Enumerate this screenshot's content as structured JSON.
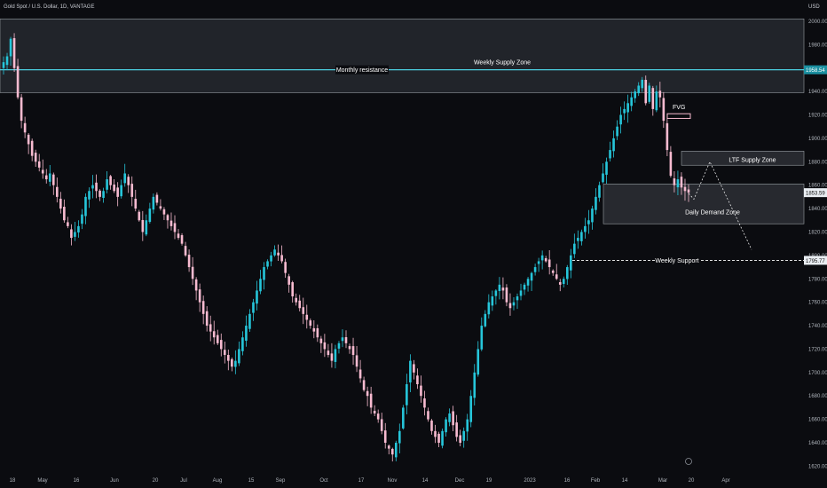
{
  "header": {
    "symbol_title": "Gold Spot / U.S. Dollar, 1D, VANTAGE",
    "currency": "USD"
  },
  "colors": {
    "background": "#0b0c10",
    "up_candle": "#26c6da",
    "down_candle": "#f8bbd0",
    "level_line": "#4dd0e1",
    "zone_fill": "#2a2c33",
    "zone_border": "#9aa0a6",
    "text": "#ffffff",
    "axis_text": "#aeb3ba"
  },
  "price_axis": {
    "ticks": [
      "2000.00",
      "1980.00",
      "1960.00",
      "1940.00",
      "1920.00",
      "1900.00",
      "1880.00",
      "1860.00",
      "1840.00",
      "1820.00",
      "1800.00",
      "1780.00",
      "1760.00",
      "1740.00",
      "1720.00",
      "1700.00",
      "1680.00",
      "1660.00",
      "1640.00",
      "1620.00"
    ],
    "current_price_label": "1853.59",
    "resistance_price_label": "1958.54",
    "support_price_label": "1795.77"
  },
  "time_axis": {
    "labels": [
      "18",
      "May",
      "16",
      "Jun",
      "20",
      "Jul",
      "Aug",
      "15",
      "Sep",
      "Oct",
      "17",
      "Nov",
      "14",
      "Dec",
      "19",
      "2023",
      "16",
      "Feb",
      "14",
      "Mar",
      "20",
      "Apr"
    ]
  },
  "annotations": {
    "weekly_supply_zone": "Weekly Supply Zone",
    "monthly_resistance": "Monthly resistance",
    "fvg": "FVG",
    "ltf_supply_zone": "LTF Supply Zone",
    "daily_demand_zone": "Daily Demand Zone",
    "weekly_support": "Weekly Support"
  },
  "chart_data": {
    "type": "candlestick",
    "ylim": [
      1615,
      2006
    ],
    "levels": {
      "monthly_resistance": 1958.54,
      "weekly_support": 1795.77,
      "current_price": 1853.59
    },
    "zones": [
      {
        "name": "Weekly Supply Zone",
        "from": 1939,
        "to": 2002
      },
      {
        "name": "LTF Supply Zone",
        "from": 1877,
        "to": 1889
      },
      {
        "name": "Daily Demand Zone",
        "from": 1827,
        "to": 1861
      }
    ],
    "close_path": [
      1965,
      1970,
      1985,
      1960,
      1935,
      1915,
      1905,
      1895,
      1885,
      1880,
      1875,
      1870,
      1865,
      1870,
      1860,
      1850,
      1840,
      1830,
      1825,
      1815,
      1820,
      1825,
      1835,
      1850,
      1855,
      1860,
      1855,
      1850,
      1855,
      1865,
      1860,
      1855,
      1850,
      1860,
      1870,
      1860,
      1850,
      1840,
      1830,
      1820,
      1830,
      1840,
      1850,
      1845,
      1840,
      1835,
      1830,
      1825,
      1820,
      1815,
      1810,
      1800,
      1790,
      1780,
      1770,
      1760,
      1750,
      1740,
      1735,
      1730,
      1725,
      1720,
      1715,
      1710,
      1705,
      1710,
      1720,
      1730,
      1740,
      1750,
      1760,
      1770,
      1780,
      1790,
      1795,
      1800,
      1805,
      1800,
      1795,
      1785,
      1775,
      1765,
      1760,
      1755,
      1750,
      1745,
      1740,
      1735,
      1730,
      1725,
      1720,
      1715,
      1710,
      1720,
      1725,
      1730,
      1725,
      1720,
      1715,
      1705,
      1695,
      1685,
      1680,
      1670,
      1665,
      1660,
      1650,
      1640,
      1635,
      1630,
      1640,
      1650,
      1670,
      1690,
      1710,
      1700,
      1690,
      1680,
      1670,
      1660,
      1650,
      1645,
      1640,
      1650,
      1660,
      1665,
      1655,
      1645,
      1640,
      1650,
      1660,
      1680,
      1700,
      1720,
      1740,
      1750,
      1760,
      1765,
      1770,
      1775,
      1770,
      1760,
      1755,
      1760,
      1765,
      1770,
      1775,
      1780,
      1785,
      1790,
      1795,
      1800,
      1795,
      1790,
      1785,
      1780,
      1775,
      1780,
      1790,
      1800,
      1810,
      1815,
      1820,
      1825,
      1830,
      1840,
      1850,
      1860,
      1870,
      1880,
      1890,
      1900,
      1910,
      1920,
      1925,
      1930,
      1935,
      1940,
      1945,
      1950,
      1930,
      1945,
      1925,
      1940,
      1935,
      1915,
      1890,
      1868,
      1860,
      1865,
      1858,
      1855,
      1853.59
    ]
  }
}
